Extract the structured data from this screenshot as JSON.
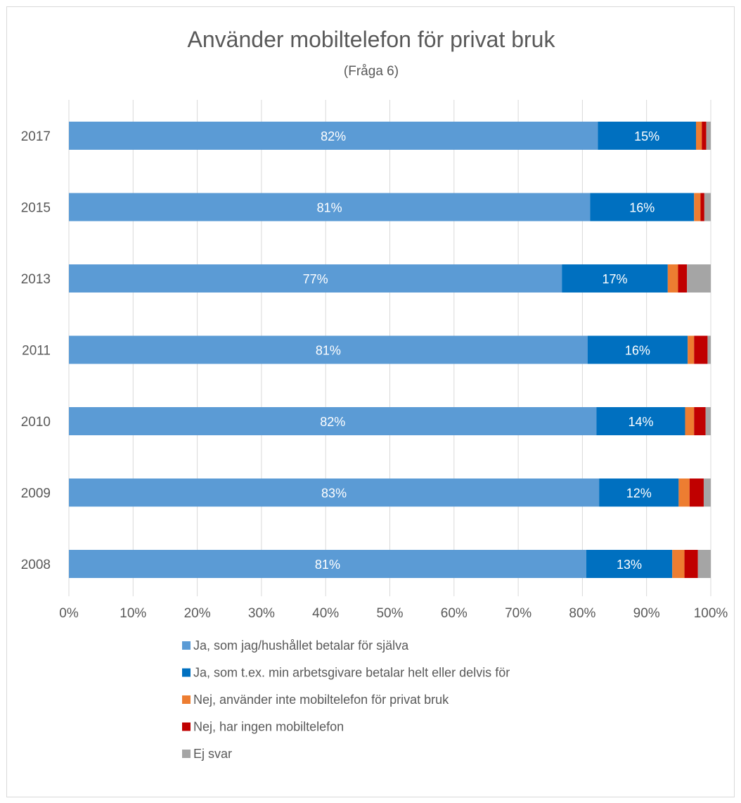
{
  "chart_data": {
    "type": "bar",
    "orientation": "horizontal",
    "stacked": "percent",
    "title": "Använder mobiltelefon för privat bruk",
    "subtitle": "(Fråga 6)",
    "categories": [
      "2017",
      "2015",
      "2013",
      "2011",
      "2010",
      "2009",
      "2008"
    ],
    "xlim": [
      0,
      100
    ],
    "xticks": [
      "0%",
      "10%",
      "20%",
      "30%",
      "40%",
      "50%",
      "60%",
      "70%",
      "80%",
      "90%",
      "100%"
    ],
    "grid": true,
    "legend_position": "bottom",
    "series": [
      {
        "name": "Ja, som jag/hushållet betalar för själva",
        "color": "#5b9bd5",
        "values": [
          82.4,
          81.2,
          76.8,
          80.8,
          82.2,
          82.6,
          80.6
        ],
        "labels": [
          "82%",
          "81%",
          "77%",
          "81%",
          "82%",
          "83%",
          "81%"
        ]
      },
      {
        "name": "Ja, som t.ex. min arbetsgivare betalar helt eller delvis för",
        "color": "#0070c0",
        "values": [
          15.3,
          16.2,
          16.5,
          15.6,
          13.8,
          12.4,
          13.4
        ],
        "labels": [
          "15%",
          "16%",
          "17%",
          "16%",
          "14%",
          "12%",
          "13%"
        ]
      },
      {
        "name": "Nej, använder inte mobiltelefon för privat bruk",
        "color": "#ed7d31",
        "values": [
          0.9,
          1.0,
          1.6,
          1.0,
          1.4,
          1.7,
          1.9
        ],
        "labels": [
          "",
          "",
          "",
          "",
          "",
          "",
          ""
        ]
      },
      {
        "name": "Nej, har ingen mobiltelefon",
        "color": "#c00000",
        "values": [
          0.7,
          0.6,
          1.4,
          2.1,
          1.8,
          2.2,
          2.1
        ],
        "labels": [
          "",
          "",
          "",
          "",
          "",
          "",
          ""
        ]
      },
      {
        "name": "Ej svar",
        "color": "#a5a5a5",
        "values": [
          0.7,
          1.0,
          3.7,
          0.5,
          0.8,
          1.1,
          2.0
        ],
        "labels": [
          "",
          "",
          "",
          "",
          "",
          "",
          ""
        ]
      }
    ]
  }
}
